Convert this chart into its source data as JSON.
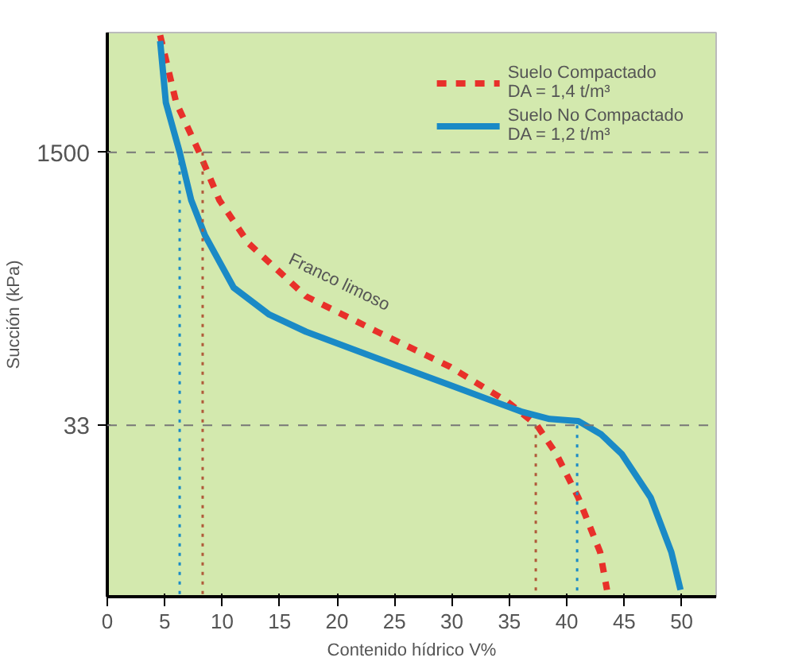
{
  "chart_data": {
    "type": "line",
    "xlabel": "Contenido hídrico V%",
    "ylabel": "Succión (kPa)",
    "log": "y",
    "xlim": [
      0,
      53
    ],
    "ylim": [
      3,
      8000
    ],
    "xticks": [
      0,
      5,
      10,
      15,
      20,
      25,
      30,
      35,
      40,
      45,
      50
    ],
    "yticks": [
      33,
      1500
    ],
    "grid": false,
    "legend": "top right",
    "series": [
      {
        "name": "Suelo Compactado\nDA = 1,4 t/m³",
        "color": "#e8302a",
        "line_style": "dashed",
        "x": [
          4.6,
          6,
          8,
          9.75,
          12.3,
          17.3,
          23.5,
          29.8,
          34.8,
          37.4,
          39.1,
          41,
          42.9,
          43.5
        ],
        "values": [
          7700,
          3000,
          1500,
          770,
          420,
          200,
          122,
          75,
          46,
          33,
          22,
          12,
          5.6,
          3.3
        ]
      },
      {
        "name": "Suelo No Compactado\nDA = 1,2 t/m³",
        "color": "#1a8ac6",
        "line_style": "solid",
        "x": [
          4.6,
          5.1,
          6.3,
          7.3,
          8.5,
          11,
          14.1,
          17.3,
          23.5,
          29.8,
          36,
          38.5,
          41,
          43,
          44.8,
          47.3,
          49.1,
          49.9
        ],
        "values": [
          7100,
          3000,
          1500,
          770,
          470,
          226,
          155,
          122,
          84,
          58,
          40,
          36,
          35,
          29,
          22,
          12,
          5.6,
          3.3
        ]
      },
      {
        "color": "#1a8ac6",
        "line_style": "dotted",
        "x": [
          6.3,
          6.3
        ],
        "values": [
          1500,
          3
        ]
      },
      {
        "color": "#b05a3a",
        "line_style": "dotted",
        "x": [
          8.3,
          8.3
        ],
        "values": [
          1500,
          3
        ]
      },
      {
        "color": "#b05a3a",
        "line_style": "dotted",
        "x": [
          37.3,
          37.3
        ],
        "values": [
          33,
          3
        ]
      },
      {
        "color": "#1a8ac6",
        "line_style": "dotted",
        "x": [
          40.9,
          40.9
        ],
        "values": [
          33,
          3
        ]
      }
    ],
    "ref_lines": [
      {
        "axis": "y",
        "value": 1500,
        "color": "#777777",
        "line_style": "dashed"
      },
      {
        "axis": "y",
        "value": 33,
        "color": "#777777",
        "line_style": "dashed"
      }
    ],
    "annotations": [
      {
        "text": "Franco limoso",
        "x": 15.5,
        "y": 300
      }
    ]
  }
}
